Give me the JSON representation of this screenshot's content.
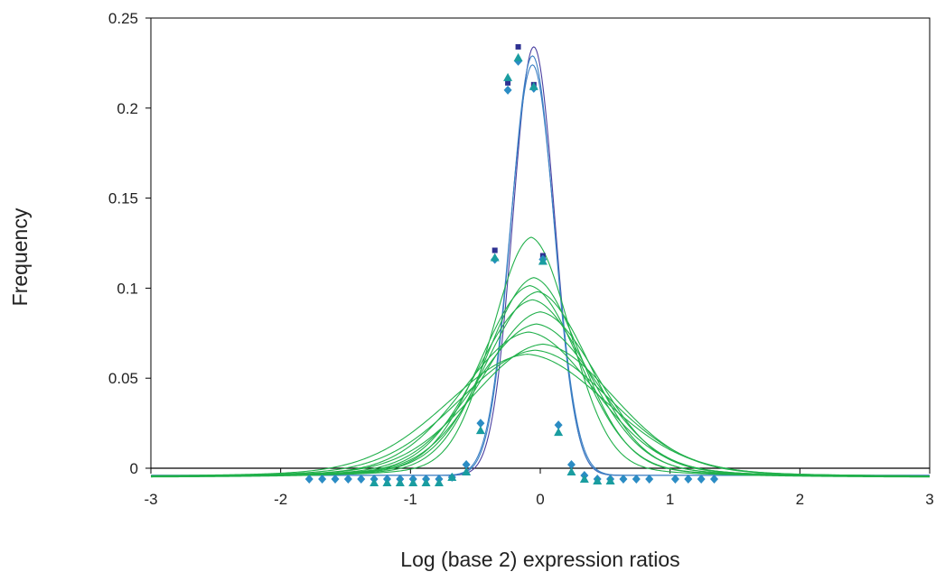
{
  "chart_data": {
    "type": "scatter",
    "title": "",
    "xlabel": "Log (base 2) expression ratios",
    "ylabel": "Frequency",
    "xlim": [
      -3,
      3
    ],
    "ylim": [
      0,
      0.25
    ],
    "x_ticks": [
      "-3",
      "-2",
      "-1",
      "0",
      "1",
      "2",
      "3"
    ],
    "y_ticks": [
      "0",
      "0.05",
      "0.1",
      "0.15",
      "0.2",
      "0.25"
    ],
    "grid": false,
    "legend": "none",
    "colors": {
      "navy": "#2e3192",
      "diamond": "#2b8cc4",
      "triangle": "#1a9da0",
      "blue_fit": "#3a7fc4",
      "purple_fit": "#4a3fa0",
      "green_fit": "#21b04b",
      "axis": "#000000"
    },
    "series": [
      {
        "marker": "square",
        "color": "#2e3192",
        "points": [
          [
            -0.35,
            0.121
          ],
          [
            -0.25,
            0.214
          ],
          [
            -0.17,
            0.234
          ],
          [
            -0.05,
            0.213
          ],
          [
            0.02,
            0.118
          ]
        ]
      },
      {
        "marker": "diamond",
        "color": "#2b8cc4",
        "points": [
          [
            -1.78,
            -0.006
          ],
          [
            -1.68,
            -0.006
          ],
          [
            -1.58,
            -0.006
          ],
          [
            -1.48,
            -0.006
          ],
          [
            -1.38,
            -0.006
          ],
          [
            -1.28,
            -0.006
          ],
          [
            -1.18,
            -0.006
          ],
          [
            -1.08,
            -0.006
          ],
          [
            -0.98,
            -0.006
          ],
          [
            -0.88,
            -0.006
          ],
          [
            -0.78,
            -0.006
          ],
          [
            -0.68,
            -0.005
          ],
          [
            -0.57,
            0.002
          ],
          [
            -0.46,
            0.025
          ],
          [
            -0.35,
            0.116
          ],
          [
            -0.25,
            0.21
          ],
          [
            -0.17,
            0.226
          ],
          [
            -0.05,
            0.211
          ],
          [
            0.02,
            0.116
          ],
          [
            0.14,
            0.024
          ],
          [
            0.24,
            0.002
          ],
          [
            0.34,
            -0.004
          ],
          [
            0.44,
            -0.006
          ],
          [
            0.54,
            -0.006
          ],
          [
            0.64,
            -0.006
          ],
          [
            0.74,
            -0.006
          ],
          [
            0.84,
            -0.006
          ],
          [
            1.04,
            -0.006
          ],
          [
            1.14,
            -0.006
          ],
          [
            1.24,
            -0.006
          ],
          [
            1.34,
            -0.006
          ]
        ]
      },
      {
        "marker": "triangle",
        "color": "#1a9da0",
        "points": [
          [
            -1.28,
            -0.008
          ],
          [
            -1.18,
            -0.008
          ],
          [
            -1.08,
            -0.008
          ],
          [
            -0.98,
            -0.008
          ],
          [
            -0.88,
            -0.008
          ],
          [
            -0.78,
            -0.008
          ],
          [
            -0.68,
            -0.005
          ],
          [
            -0.57,
            -0.002
          ],
          [
            -0.46,
            0.021
          ],
          [
            -0.35,
            0.117
          ],
          [
            -0.25,
            0.217
          ],
          [
            -0.17,
            0.228
          ],
          [
            -0.05,
            0.212
          ],
          [
            0.02,
            0.115
          ],
          [
            0.14,
            0.02
          ],
          [
            0.24,
            -0.002
          ],
          [
            0.34,
            -0.006
          ],
          [
            0.44,
            -0.007
          ],
          [
            0.54,
            -0.007
          ]
        ]
      }
    ],
    "fitted_curves": [
      {
        "color": "#4a3fa0",
        "peak": 0.234,
        "center": -0.05,
        "width": 0.16
      },
      {
        "color": "#3a7fc4",
        "peak": 0.229,
        "center": -0.06,
        "width": 0.165
      },
      {
        "color": "#3a7fc4",
        "peak": 0.224,
        "center": -0.06,
        "width": 0.17
      },
      {
        "color": "#21b04b",
        "peak": 0.119,
        "center": -0.07,
        "width": 0.3
      },
      {
        "color": "#21b04b",
        "peak": 0.099,
        "center": -0.05,
        "width": 0.36
      },
      {
        "color": "#21b04b",
        "peak": 0.095,
        "center": -0.08,
        "width": 0.38
      },
      {
        "color": "#21b04b",
        "peak": 0.092,
        "center": -0.02,
        "width": 0.4
      },
      {
        "color": "#21b04b",
        "peak": 0.088,
        "center": -0.06,
        "width": 0.42
      },
      {
        "color": "#21b04b",
        "peak": 0.082,
        "center": 0.0,
        "width": 0.44
      },
      {
        "color": "#21b04b",
        "peak": 0.076,
        "center": -0.03,
        "width": 0.47
      },
      {
        "color": "#21b04b",
        "peak": 0.072,
        "center": -0.09,
        "width": 0.5
      },
      {
        "color": "#21b04b",
        "peak": 0.066,
        "center": 0.02,
        "width": 0.54
      },
      {
        "color": "#21b04b",
        "peak": 0.063,
        "center": -0.04,
        "width": 0.58
      },
      {
        "color": "#21b04b",
        "peak": 0.061,
        "center": -0.1,
        "width": 0.61
      }
    ]
  }
}
